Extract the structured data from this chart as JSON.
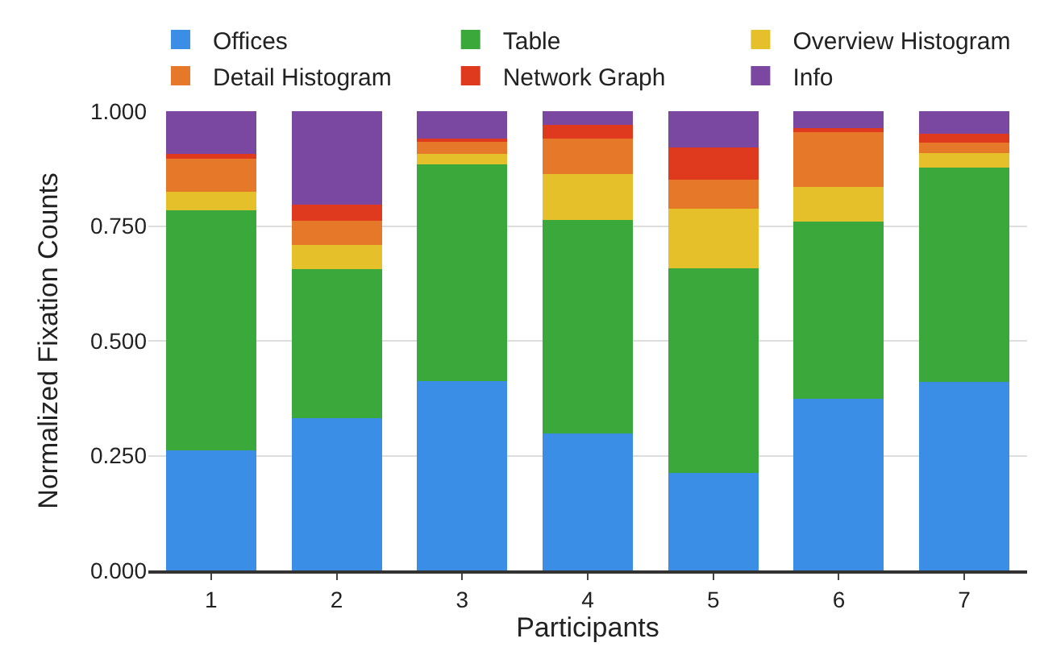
{
  "chart_data": {
    "type": "bar",
    "stacked": true,
    "xlabel": "Participants",
    "ylabel": "Normalized Fixation Counts",
    "categories": [
      "1",
      "2",
      "3",
      "4",
      "5",
      "6",
      "7"
    ],
    "series": [
      {
        "name": "Offices",
        "color": "#3a8ee6",
        "values": [
          0.261,
          0.331,
          0.413,
          0.299,
          0.212,
          0.373,
          0.411
        ]
      },
      {
        "name": "Table",
        "color": "#3aa83a",
        "values": [
          0.524,
          0.326,
          0.471,
          0.464,
          0.446,
          0.386,
          0.466
        ]
      },
      {
        "name": "Overview Histogram",
        "color": "#e6c02a",
        "values": [
          0.04,
          0.052,
          0.023,
          0.101,
          0.129,
          0.076,
          0.032
        ]
      },
      {
        "name": "Detail Histogram",
        "color": "#e6782a",
        "values": [
          0.072,
          0.052,
          0.026,
          0.077,
          0.064,
          0.12,
          0.022
        ]
      },
      {
        "name": "Network Graph",
        "color": "#e03a1e",
        "values": [
          0.01,
          0.036,
          0.008,
          0.03,
          0.07,
          0.009,
          0.02
        ]
      },
      {
        "name": "Info",
        "color": "#7a48a0",
        "values": [
          0.093,
          0.203,
          0.059,
          0.029,
          0.079,
          0.036,
          0.049
        ]
      }
    ],
    "ylim": [
      0,
      1
    ],
    "yticks": [
      {
        "value": 0,
        "label": "0.000"
      },
      {
        "value": 0.25,
        "label": "0.250"
      },
      {
        "value": 0.5,
        "label": "0.500"
      },
      {
        "value": 0.75,
        "label": "0.750"
      },
      {
        "value": 1,
        "label": "1.000"
      }
    ],
    "grid": "y",
    "legend": "top"
  }
}
